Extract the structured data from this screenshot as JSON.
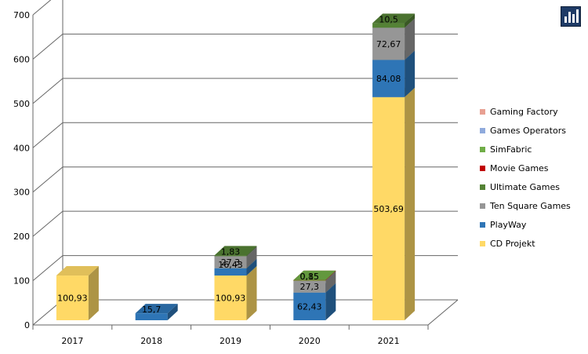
{
  "chart_data": {
    "type": "bar",
    "stacked": true,
    "three_d": true,
    "categories": [
      "2017",
      "2018",
      "2019",
      "2020",
      "2021"
    ],
    "ylim": [
      0,
      700
    ],
    "yticks": [
      0,
      100,
      200,
      300,
      400,
      500,
      600,
      700
    ],
    "grid": true,
    "legend_position": "right",
    "series": [
      {
        "name": "CD Projekt",
        "color": "#FFD966",
        "values": [
          100.93,
          null,
          100.93,
          null,
          503.69
        ],
        "labels": [
          "100,93",
          "",
          "100,93",
          "",
          "503,69"
        ]
      },
      {
        "name": "PlayWay",
        "color": "#2E75B6",
        "values": [
          null,
          15.7,
          16.43,
          62.43,
          84.08
        ],
        "labels": [
          "",
          "15,7",
          "16,43",
          "62,43",
          "84,08"
        ]
      },
      {
        "name": "Ten Square Games",
        "color": "#969696",
        "values": [
          null,
          null,
          27.3,
          27.3,
          72.67
        ],
        "labels": [
          "",
          "",
          "27,3",
          "27,3",
          "72,67"
        ]
      },
      {
        "name": "Ultimate Games",
        "color": "#548235",
        "values": [
          null,
          null,
          1.83,
          null,
          10.5
        ],
        "labels": [
          "",
          "",
          "1,83",
          "",
          "10,5"
        ]
      },
      {
        "name": "Movie Games",
        "color": "#C00000",
        "values": [
          null,
          null,
          null,
          0.85,
          null
        ],
        "labels": [
          "",
          "",
          "",
          "0,85",
          ""
        ]
      },
      {
        "name": "SimFabric",
        "color": "#70AD47",
        "values": [
          null,
          null,
          null,
          0.15,
          null
        ],
        "labels": [
          "",
          "",
          "",
          "0,15",
          ""
        ]
      },
      {
        "name": "Games Operators",
        "color": "#8FAADC",
        "values": [
          null,
          null,
          null,
          null,
          null
        ],
        "labels": [
          "",
          "",
          "",
          "",
          ""
        ]
      },
      {
        "name": "Gaming Factory",
        "color": "#E8A092",
        "values": [
          null,
          null,
          null,
          null,
          null
        ],
        "labels": [
          "",
          "",
          "",
          "",
          ""
        ]
      }
    ],
    "legend_order": [
      "Gaming Factory",
      "Games Operators",
      "SimFabric",
      "Movie Games",
      "Ultimate Games",
      "Ten Square Games",
      "PlayWay",
      "CD Projekt"
    ]
  }
}
